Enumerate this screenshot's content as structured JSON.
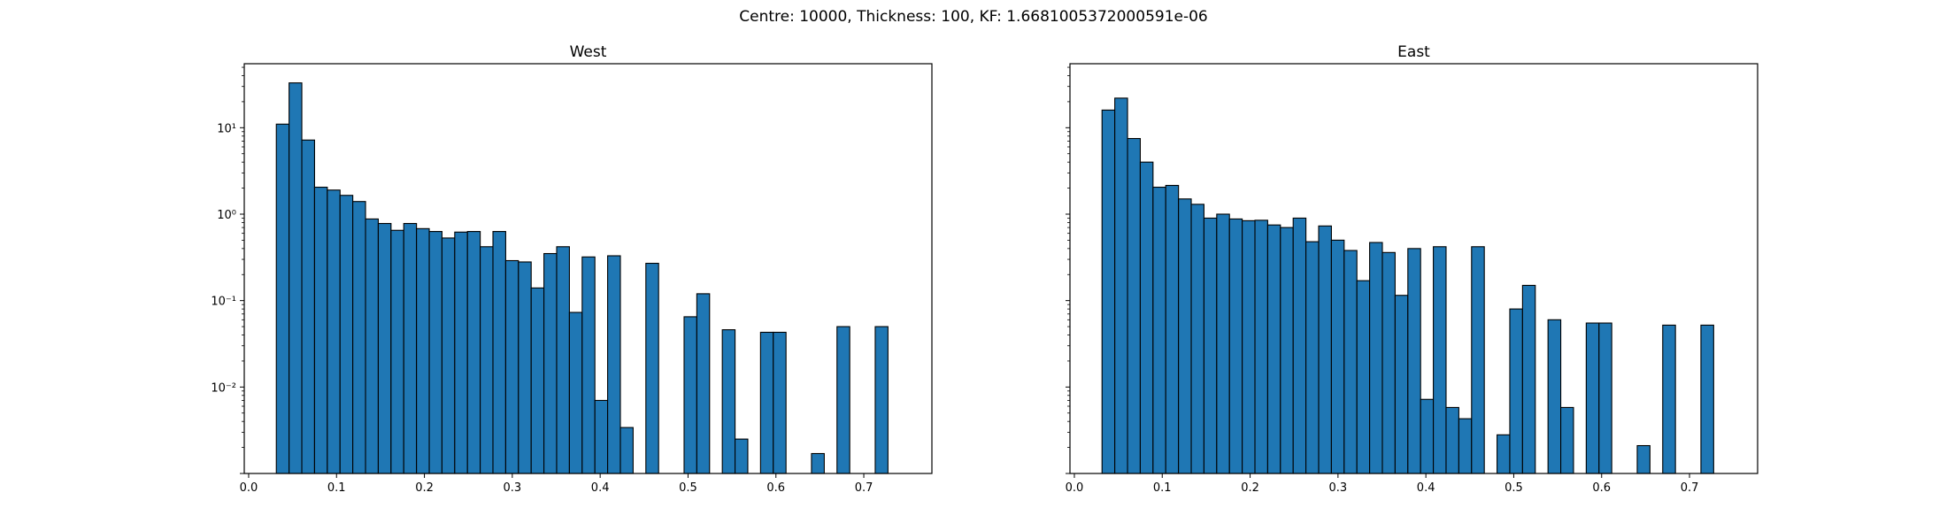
{
  "figure": {
    "suptitle": "Centre: 10000, Thickness: 100, KF: 1.6681005372000591e-06"
  },
  "colors": {
    "bar_fill": "#1f77b4",
    "bar_edge": "#000000",
    "axes": "#000000",
    "background": "#ffffff"
  },
  "chart_data": [
    {
      "type": "bar",
      "title": "West",
      "xlabel": "",
      "ylabel": "",
      "yscale": "log",
      "grid": false,
      "xlim": [
        -0.005,
        0.7775
      ],
      "ylim": [
        0.001,
        55
      ],
      "xticks": [
        0.0,
        0.1,
        0.2,
        0.3,
        0.4,
        0.5,
        0.6,
        0.7
      ],
      "xtick_labels": [
        "0.0",
        "0.1",
        "0.2",
        "0.3",
        "0.4",
        "0.5",
        "0.6",
        "0.7"
      ],
      "yticks": [
        0.01,
        0.1,
        1,
        10
      ],
      "ytick_labels": [
        "10⁻²",
        "10⁻¹",
        "10⁰",
        "10¹"
      ],
      "bin_edges": [
        0.0315,
        0.046,
        0.0605,
        0.075,
        0.0895,
        0.104,
        0.1185,
        0.133,
        0.1475,
        0.162,
        0.1765,
        0.191,
        0.2055,
        0.22,
        0.2345,
        0.249,
        0.2635,
        0.278,
        0.2925,
        0.307,
        0.3215,
        0.336,
        0.3505,
        0.365,
        0.3795,
        0.394,
        0.4085,
        0.423,
        0.4375,
        0.452,
        0.4665,
        0.481,
        0.4955,
        0.51,
        0.5245,
        0.539,
        0.5535,
        0.568,
        0.5825,
        0.597,
        0.6115,
        0.626,
        0.6405,
        0.655,
        0.6695,
        0.684,
        0.6985,
        0.713,
        0.7275,
        0.742
      ],
      "values": [
        11,
        33,
        7.2,
        2.05,
        1.9,
        1.65,
        1.4,
        0.88,
        0.78,
        0.65,
        0.78,
        0.68,
        0.63,
        0.53,
        0.62,
        0.63,
        0.42,
        0.63,
        0.29,
        0.28,
        0.14,
        0.35,
        0.42,
        0.073,
        0.32,
        0.007,
        0.33,
        0.0034,
        0,
        0.27,
        0,
        0,
        0.065,
        0.12,
        0,
        0.046,
        0.0025,
        0,
        0.043,
        0.043,
        0,
        0,
        0.0017,
        0,
        0.05,
        0,
        0,
        0.05,
        0
      ]
    },
    {
      "type": "bar",
      "title": "East",
      "xlabel": "",
      "ylabel": "",
      "yscale": "log",
      "grid": false,
      "xlim": [
        -0.005,
        0.7775
      ],
      "ylim": [
        0.001,
        55
      ],
      "xticks": [
        0.0,
        0.1,
        0.2,
        0.3,
        0.4,
        0.5,
        0.6,
        0.7
      ],
      "xtick_labels": [
        "0.0",
        "0.1",
        "0.2",
        "0.3",
        "0.4",
        "0.5",
        "0.6",
        "0.7"
      ],
      "bin_edges": [
        0.0315,
        0.046,
        0.0605,
        0.075,
        0.0895,
        0.104,
        0.1185,
        0.133,
        0.1475,
        0.162,
        0.1765,
        0.191,
        0.2055,
        0.22,
        0.2345,
        0.249,
        0.2635,
        0.278,
        0.2925,
        0.307,
        0.3215,
        0.336,
        0.3505,
        0.365,
        0.3795,
        0.394,
        0.4085,
        0.423,
        0.4375,
        0.452,
        0.4665,
        0.481,
        0.4955,
        0.51,
        0.5245,
        0.539,
        0.5535,
        0.568,
        0.5825,
        0.597,
        0.6115,
        0.626,
        0.6405,
        0.655,
        0.6695,
        0.684,
        0.6985,
        0.713,
        0.7275,
        0.742
      ],
      "values": [
        16,
        22,
        7.5,
        4,
        2.05,
        2.15,
        1.5,
        1.3,
        0.9,
        1.0,
        0.88,
        0.84,
        0.85,
        0.75,
        0.7,
        0.9,
        0.48,
        0.73,
        0.5,
        0.38,
        0.17,
        0.47,
        0.36,
        0.115,
        0.4,
        0.0072,
        0.42,
        0.0058,
        0.0043,
        0.42,
        0,
        0.0028,
        0.08,
        0.15,
        0,
        0.06,
        0.0058,
        0,
        0.055,
        0.055,
        0,
        0,
        0.0021,
        0,
        0.052,
        0,
        0,
        0.052,
        0
      ]
    }
  ]
}
